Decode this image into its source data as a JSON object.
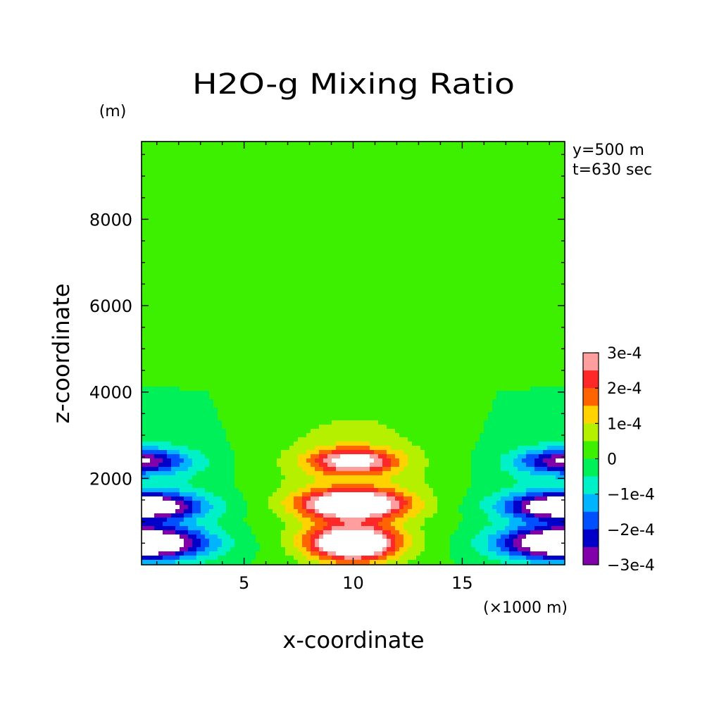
{
  "chart_data": {
    "type": "contour",
    "title": "H2O-g Mixing Ratio",
    "ylabel": "z-coordinate",
    "yunit": "(m)",
    "xlabel": "x-coordinate",
    "xunit": "(×1000 m)",
    "annotations": [
      "y=500 m",
      "t=630 sec"
    ],
    "xlim": [
      0.3,
      19.7
    ],
    "ylim": [
      0,
      9800
    ],
    "xticks": [
      {
        "value": 5,
        "label": "5"
      },
      {
        "value": 10,
        "label": "10"
      },
      {
        "value": 15,
        "label": "15"
      }
    ],
    "yticks": [
      {
        "value": 2000,
        "label": "2000"
      },
      {
        "value": 4000,
        "label": "4000"
      },
      {
        "value": 6000,
        "label": "6000"
      },
      {
        "value": 8000,
        "label": "8000"
      }
    ],
    "colorbar": {
      "labels": [
        "3e-4",
        "2e-4",
        "1e-4",
        "0",
        "−1e-4",
        "−2e-4",
        "−3e-4"
      ],
      "levels": [
        {
          "min": 0.00025,
          "max": 0.0003,
          "color": "#ff9e9e"
        },
        {
          "min": 0.0002,
          "max": 0.00025,
          "color": "#ff2828"
        },
        {
          "min": 0.00015,
          "max": 0.0002,
          "color": "#ff6400"
        },
        {
          "min": 0.0001,
          "max": 0.00015,
          "color": "#ffd200"
        },
        {
          "min": 5e-05,
          "max": 0.0001,
          "color": "#b4f000"
        },
        {
          "min": 0.0,
          "max": 5e-05,
          "color": "#3cf000"
        },
        {
          "min": -5e-05,
          "max": 0.0,
          "color": "#00f05a"
        },
        {
          "min": -0.0001,
          "max": -5e-05,
          "color": "#00f0c8"
        },
        {
          "min": -0.00015,
          "max": -0.0001,
          "color": "#00b4ff"
        },
        {
          "min": -0.0002,
          "max": -0.00015,
          "color": "#0050ff"
        },
        {
          "min": -0.00025,
          "max": -0.0002,
          "color": "#0000c8"
        },
        {
          "min": -0.0003,
          "max": -0.00025,
          "color": "#8200aa"
        }
      ],
      "out_of_range_color": "#ffffff"
    },
    "field": {
      "positive_blobs": [
        {
          "xc": 10.0,
          "zc": 500,
          "sx": 2.0,
          "sz": 400,
          "amp": 0.00046
        },
        {
          "xc": 10.0,
          "zc": 1400,
          "sx": 2.3,
          "sz": 320,
          "amp": 0.00044
        },
        {
          "xc": 10.0,
          "zc": 2400,
          "sx": 1.9,
          "sz": 280,
          "amp": 0.00029
        },
        {
          "xc": 10.0,
          "zc": 2000,
          "sx": 4.0,
          "sz": 1800,
          "amp": 9e-05
        }
      ],
      "negative_blobs": [
        {
          "xc": 0.3,
          "zc": 500,
          "sx": 2.9,
          "sz": 380,
          "amp": -0.00046
        },
        {
          "xc": 0.3,
          "zc": 1350,
          "sx": 2.6,
          "sz": 300,
          "amp": -0.0004
        },
        {
          "xc": 0.3,
          "zc": 2400,
          "sx": 2.1,
          "sz": 280,
          "amp": -0.00026
        },
        {
          "xc": 0.3,
          "zc": 1800,
          "sx": 3.5,
          "sz": 1300,
          "amp": -6e-05
        },
        {
          "xc": 19.7,
          "zc": 500,
          "sx": 2.9,
          "sz": 380,
          "amp": -0.00046
        },
        {
          "xc": 19.7,
          "zc": 1350,
          "sx": 2.6,
          "sz": 300,
          "amp": -0.0004
        },
        {
          "xc": 19.7,
          "zc": 2400,
          "sx": 2.1,
          "sz": 280,
          "amp": -0.00026
        },
        {
          "xc": 19.7,
          "zc": 1800,
          "sx": 3.5,
          "sz": 1300,
          "amp": -6e-05
        }
      ],
      "background_upper_flank": {
        "value": 3e-05,
        "x_edge_width": 5.0,
        "z_start": 4000
      }
    }
  }
}
